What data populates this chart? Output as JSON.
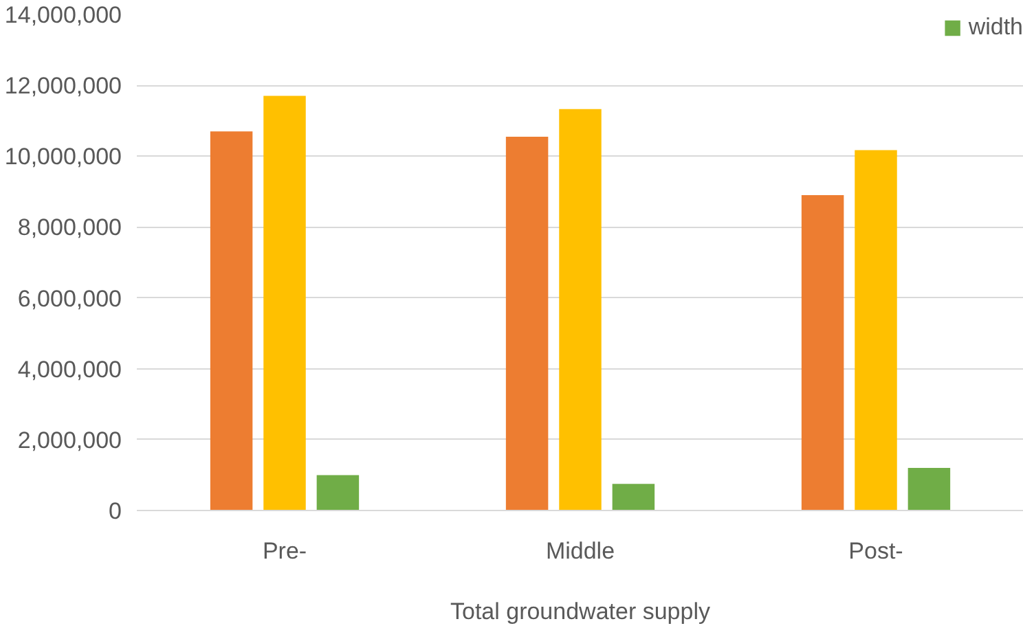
{
  "chart_data": {
    "type": "bar",
    "xlabel": "Total groundwater supply",
    "categories": [
      "Pre-",
      "Middle",
      "Post-"
    ],
    "series": [
      {
        "color": "#ed7d31",
        "values": [
          10700000,
          10550000,
          8900000
        ]
      },
      {
        "color": "#ffc000",
        "values": [
          11700000,
          11330000,
          10170000
        ]
      },
      {
        "name": "width",
        "color": "#70ad47",
        "values": [
          1000000,
          750000,
          1200000
        ]
      }
    ],
    "ylim": [
      0,
      14000000
    ],
    "yticks": [
      {
        "value": 0,
        "label": "0"
      },
      {
        "value": 2000000,
        "label": "2,000,000"
      },
      {
        "value": 4000000,
        "label": "4,000,000"
      },
      {
        "value": 6000000,
        "label": "6,000,000"
      },
      {
        "value": 8000000,
        "label": "8,000,000"
      },
      {
        "value": 10000000,
        "label": "10,000,000"
      },
      {
        "value": 12000000,
        "label": "12,000,000"
      },
      {
        "value": 14000000,
        "label": "14,000,000"
      }
    ],
    "grid": "y",
    "legend": "top right"
  }
}
